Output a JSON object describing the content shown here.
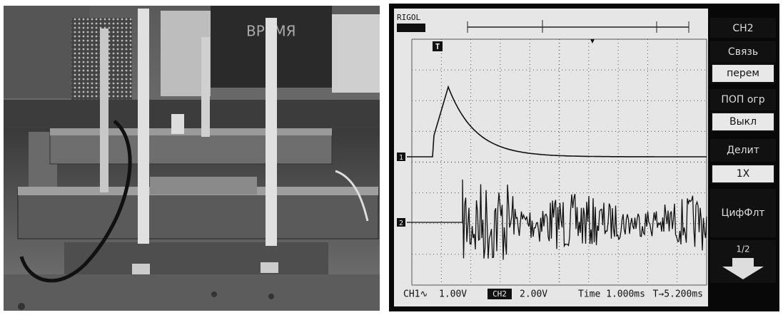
{
  "scope": {
    "brand": "RIGOL",
    "menu": {
      "title": "CH2",
      "items": [
        {
          "label": "Связь",
          "value": "перем"
        },
        {
          "label": "ПОП огр",
          "value": "Выкл"
        },
        {
          "label": "Делит",
          "value": "1X"
        },
        {
          "label": "ЦифФлт"
        }
      ],
      "page": "1/2"
    },
    "markers": {
      "trigger": "T",
      "ch1": "1",
      "ch2": "2"
    },
    "status": {
      "ch1": "CH1∿",
      "ch1_scale": "1.00V",
      "ch2": "CH2",
      "ch2_scale": "2.00V",
      "time": "Time 1.000ms",
      "trigger": "T→5.200ms"
    }
  }
}
